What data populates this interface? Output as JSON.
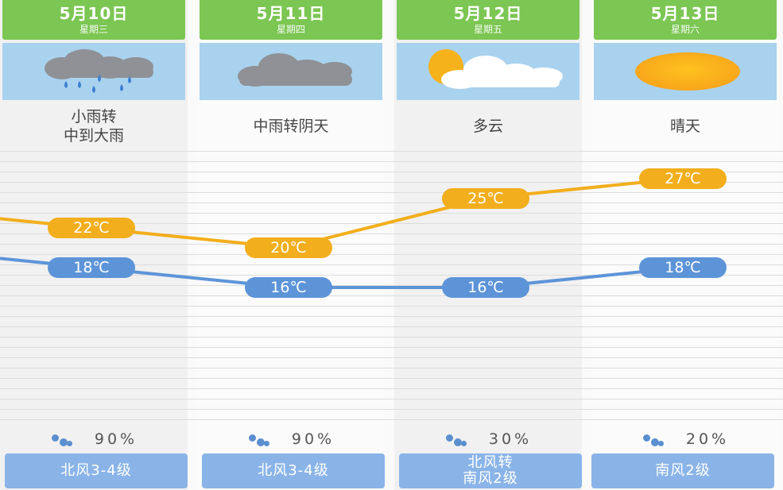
{
  "days": [
    {
      "date": "5月10日",
      "weekday": "星期三",
      "icon": "rain-cloud-icon",
      "condition": "小雨转\n中到大雨",
      "high": 22,
      "high_label": "22℃",
      "low": 18,
      "low_label": "18℃",
      "precip": "90%",
      "wind": "北风3-4级"
    },
    {
      "date": "5月11日",
      "weekday": "星期四",
      "icon": "cloud-icon",
      "condition": "中雨转阴天",
      "high": 20,
      "high_label": "20℃",
      "low": 16,
      "low_label": "16℃",
      "precip": "90%",
      "wind": "北风3-4级"
    },
    {
      "date": "5月12日",
      "weekday": "星期五",
      "icon": "partly-cloudy-icon",
      "condition": "多云",
      "high": 25,
      "high_label": "25℃",
      "low": 16,
      "low_label": "16℃",
      "precip": "30%",
      "wind": "北风转\n南风2级"
    },
    {
      "date": "5月13日",
      "weekday": "星期六",
      "icon": "sun-icon",
      "condition": "晴天",
      "high": 27,
      "high_label": "27℃",
      "low": 18,
      "low_label": "18℃",
      "precip": "20%",
      "wind": "南风2级"
    }
  ],
  "chart_data": {
    "type": "line",
    "categories": [
      "5月10日",
      "5月11日",
      "5月12日",
      "5月13日"
    ],
    "series": [
      {
        "values": [
          22,
          20,
          25,
          27
        ],
        "color": "#f2ae1c"
      },
      {
        "values": [
          18,
          16,
          16,
          18
        ],
        "color": "#5d94d8"
      }
    ]
  }
}
